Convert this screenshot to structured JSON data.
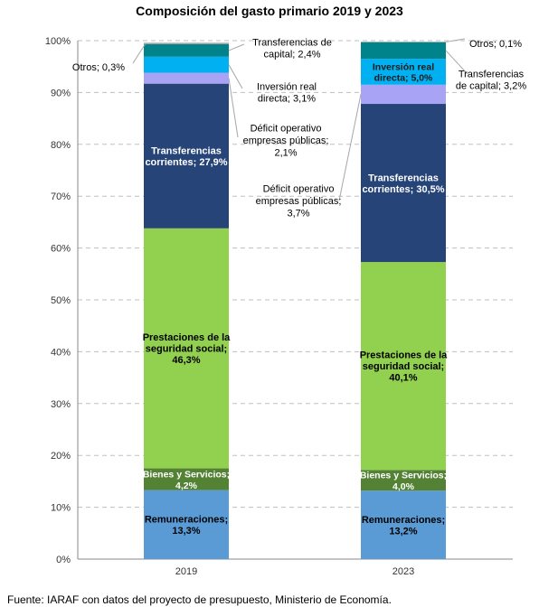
{
  "chart_data": {
    "type": "bar",
    "stacked": true,
    "title": "Composición del gasto primario 2019 y 2023",
    "categories": [
      "2019",
      "2023"
    ],
    "y_ticks": [
      "0%",
      "10%",
      "20%",
      "30%",
      "40%",
      "50%",
      "60%",
      "70%",
      "80%",
      "90%",
      "100%"
    ],
    "ylim": [
      0,
      100
    ],
    "grid": true,
    "legend": "none",
    "series": [
      {
        "name": "Remuneraciones",
        "color": "#5B9BD5",
        "values": [
          13.3,
          13.2
        ],
        "labels": [
          "Remuneraciones;\n13,3%",
          "Remuneraciones;\n13,2%"
        ]
      },
      {
        "name": "Bienes y Servicios",
        "color": "#548235",
        "values": [
          4.2,
          4.0
        ],
        "labels": [
          "Bienes y Servicios;\n4,2%",
          "Bienes y Servicios;\n4,0%"
        ]
      },
      {
        "name": "Prestaciones de la seguridad social",
        "color": "#92D050",
        "values": [
          46.3,
          40.1
        ],
        "labels": [
          "Prestaciones de la\nseguridad social;\n46,3%",
          "Prestaciones de la\nseguridad social;\n40,1%"
        ]
      },
      {
        "name": "Transferencias corrientes",
        "color": "#264478",
        "values": [
          27.9,
          30.5
        ],
        "labels": [
          "Transferencias\ncorrientes; 27,9%",
          "Transferencias\ncorrientes; 30,5%"
        ]
      },
      {
        "name": "Déficit operativo empresas públicas",
        "color": "#A9A3F5",
        "values": [
          2.1,
          3.7
        ],
        "labels": [
          "Déficit operativo\nempresas públicas;\n2,1%",
          "Déficit operativo\nempresas públicas;\n3,7%"
        ]
      },
      {
        "name": "Inversión real directa",
        "color": "#00B0F0",
        "values": [
          3.1,
          5.0
        ],
        "labels": [
          "Inversión real\ndirecta; 3,1%",
          "Inversión real\ndirecta; 5,0%"
        ]
      },
      {
        "name": "Transferencias de capital",
        "color": "#00838A",
        "values": [
          2.4,
          3.2
        ],
        "labels": [
          "Transferencias de\ncapital; 2,4%",
          "Transferencias\nde capital; 3,2%"
        ]
      },
      {
        "name": "Otros",
        "color": "#A6A6A6",
        "values": [
          0.3,
          0.1
        ],
        "labels": [
          "Otros; 0,3%",
          "Otros; 0,1%"
        ]
      }
    ],
    "source": "Fuente: IARAF con datos del proyecto de presupuesto, Ministerio de Economía."
  }
}
